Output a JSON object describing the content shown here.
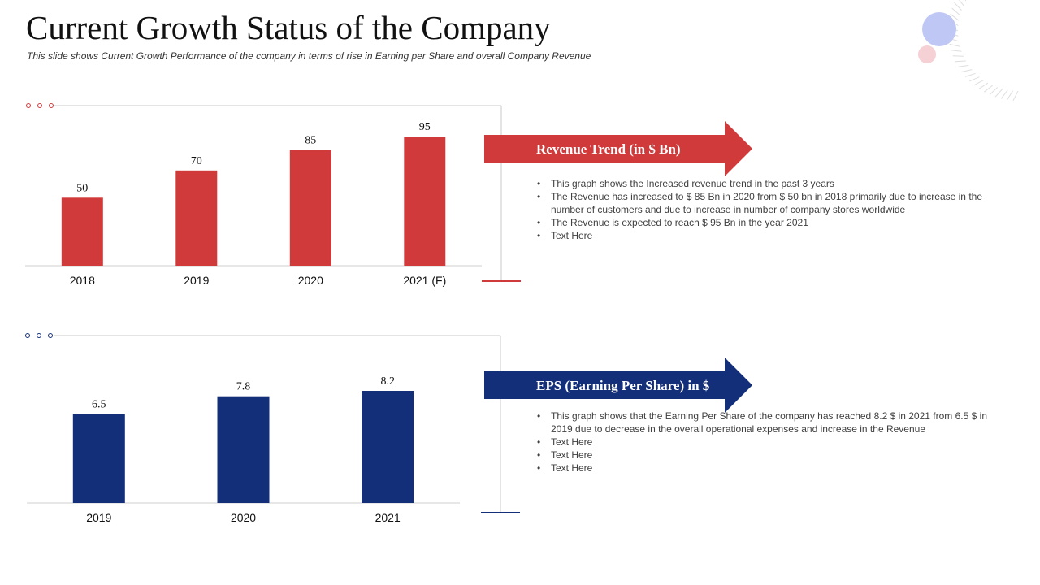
{
  "page": {
    "title": "Current Growth Status of the Company",
    "subtitle": "This slide shows Current Growth  Performance of the company in terms of rise in Earning per Share and overall Company Revenue"
  },
  "colors": {
    "revenue": "#d13a3a",
    "eps": "#132f7a",
    "deco_blue": "#bfc8f5",
    "deco_pink": "#f5d0d4"
  },
  "revenue": {
    "banner": "Revenue Trend (in $ Bn)",
    "bullets": [
      "This graph shows the Increased revenue  trend in the past 3 years",
      "The Revenue  has increased to $ 85 Bn in 2020 from $ 50 bn in 2018 primarily due to increase in the number of customers and due to increase in number of company stores worldwide",
      "The Revenue  is expected to reach $ 95 Bn in the year 2021",
      "Text Here"
    ]
  },
  "eps": {
    "banner": "EPS (Earning Per Share) in $",
    "bullets": [
      "This graph shows that the Earning Per Share of the company has reached 8.2 $ in 2021 from 6.5 $ in 2019 due to decrease in the overall operational expenses and increase in the Revenue",
      "Text Here",
      "Text Here",
      "Text Here"
    ]
  },
  "chart_data": [
    {
      "type": "bar",
      "categories": [
        "2018",
        "2019",
        "2020",
        "2021 (F)"
      ],
      "values": [
        50,
        70,
        85,
        95
      ],
      "data_labels": [
        "50",
        "70",
        "85",
        "95"
      ],
      "ylim": [
        0,
        95
      ]
    },
    {
      "type": "bar",
      "categories": [
        "2019",
        "2020",
        "2021"
      ],
      "values": [
        6.5,
        7.8,
        8.2
      ],
      "data_labels": [
        "6.5",
        "7.8",
        "8.2"
      ],
      "ylim": [
        0,
        8.2
      ]
    }
  ]
}
